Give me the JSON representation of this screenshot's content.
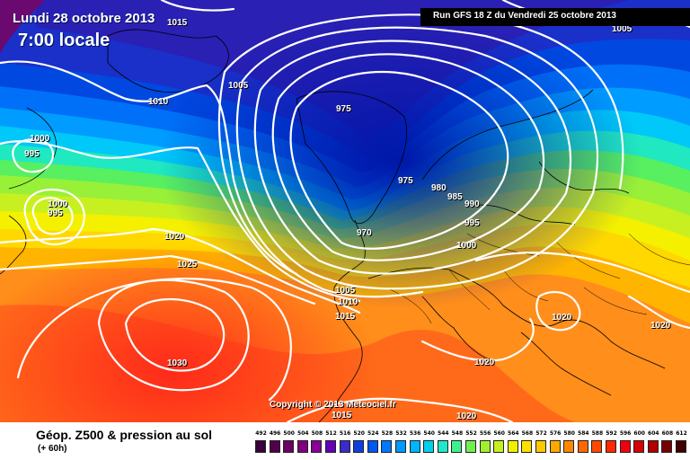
{
  "header": {
    "date": "Lundi 28 octobre 2013",
    "time": "7:00 locale",
    "run": "Run GFS 18 Z du Vendredi 25 octobre 2013"
  },
  "copyright": "Copyright © 2013 Meteociel.fr",
  "footer": {
    "title": "Géop. Z500 & pression au sol",
    "subtitle": "(+ 60h)"
  },
  "isobars": [
    {
      "label": "1015"
    },
    {
      "label": "1005"
    },
    {
      "label": "1005"
    },
    {
      "label": "1010"
    },
    {
      "label": "1000"
    },
    {
      "label": "995"
    },
    {
      "label": "1000"
    },
    {
      "label": "995"
    },
    {
      "label": "975"
    },
    {
      "label": "975"
    },
    {
      "label": "980"
    },
    {
      "label": "985"
    },
    {
      "label": "990"
    },
    {
      "label": "995"
    },
    {
      "label": "1000"
    },
    {
      "label": "970"
    },
    {
      "label": "1020"
    },
    {
      "label": "1025"
    },
    {
      "label": "1005"
    },
    {
      "label": "1010"
    },
    {
      "label": "1015"
    },
    {
      "label": "1030"
    },
    {
      "label": "1020"
    },
    {
      "label": "1020"
    },
    {
      "label": "1020"
    },
    {
      "label": "1015"
    },
    {
      "label": "1020"
    }
  ],
  "legend": {
    "labels": [
      "492",
      "496",
      "500",
      "504",
      "508",
      "512",
      "516",
      "520",
      "524",
      "528",
      "532",
      "536",
      "540",
      "544",
      "548",
      "552",
      "556",
      "560",
      "564",
      "568",
      "572",
      "576",
      "580",
      "584",
      "588",
      "592",
      "596",
      "600",
      "604",
      "608",
      "612"
    ],
    "colors": [
      "#38003c",
      "#52004e",
      "#6a0064",
      "#800080",
      "#880098",
      "#6600b4",
      "#3a2cc8",
      "#1040dc",
      "#0058f0",
      "#0078ff",
      "#0098ff",
      "#00b4ff",
      "#00d0f0",
      "#20e8c8",
      "#40f090",
      "#70f050",
      "#a0f030",
      "#c8f020",
      "#f0f000",
      "#ffe000",
      "#ffc800",
      "#ffa800",
      "#ff8800",
      "#ff6800",
      "#ff4800",
      "#ff2800",
      "#f00010",
      "#d80000",
      "#b00000",
      "#780000",
      "#400000"
    ]
  }
}
